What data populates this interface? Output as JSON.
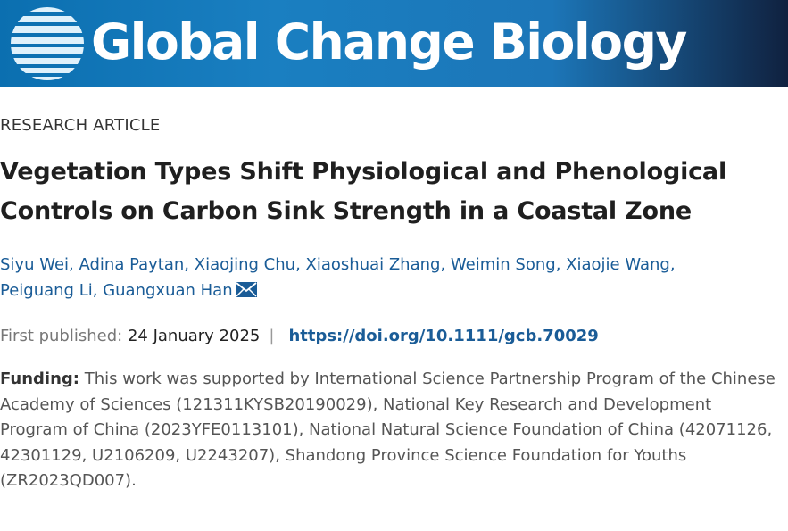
{
  "journal": {
    "name": "Global Change Biology",
    "logo_icon": "globe-icon"
  },
  "article": {
    "type": "RESEARCH ARTICLE",
    "title": "Vegetation Types Shift Physiological and Phenological Controls on Carbon Sink Strength in a Coastal Zone",
    "authors": [
      "Siyu Wei",
      "Adina Paytan",
      "Xiaojing Chu",
      "Xiaoshuai Zhang",
      "Weimin Song",
      "Xiaojie Wang",
      "Peiguang Li",
      "Guangxuan Han"
    ],
    "corresponding_icon": "mail-icon",
    "first_published_label": "First published:",
    "first_published_date": "24 January 2025",
    "divider": "|",
    "doi": "https://doi.org/10.1111/gcb.70029",
    "funding_label": "Funding:",
    "funding_text": "This work was supported by International Science Partnership Program of the Chinese Academy of Sciences (121311KYSB20190029), National Key Research and Development Program of China (2023YFE0113101), National Natural Science Foundation of China (42071126, 42301129, U2106209, U2243207), Shandong Province Science Foundation for Youths (ZR2023QD007)."
  },
  "colors": {
    "banner": "#1a7fc1",
    "link": "#1a5c97"
  }
}
